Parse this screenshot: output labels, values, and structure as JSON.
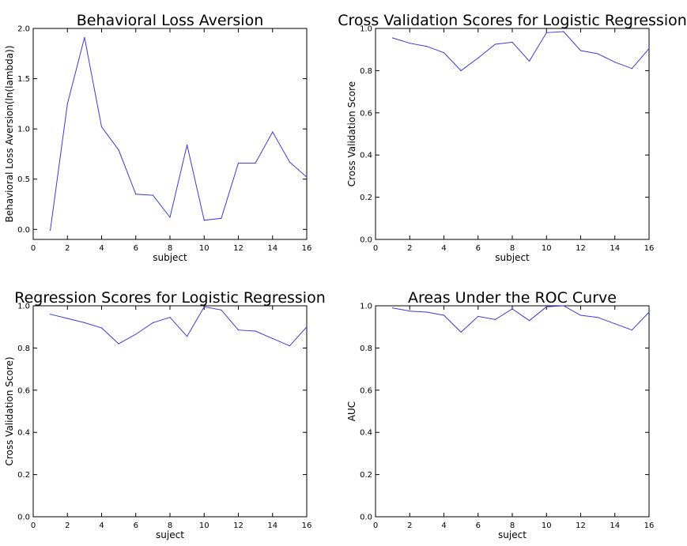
{
  "colors": {
    "line": "#3b3bd6",
    "axes": "#000000",
    "background": "#ffffff"
  },
  "chart_data": [
    {
      "type": "line",
      "title": "Behavioral Loss Aversion",
      "xlabel": "subject",
      "ylabel": "Behavioral Loss Aversion(ln(lambda))",
      "xlim": [
        0,
        16
      ],
      "ylim": [
        -0.1,
        2.0
      ],
      "xticks": [
        "0",
        "2",
        "4",
        "6",
        "8",
        "10",
        "12",
        "14",
        "16"
      ],
      "yticks": [
        "0.0",
        "0.5",
        "1.0",
        "1.5",
        "2.0"
      ],
      "grid": false,
      "series": [
        {
          "x": [
            1,
            2,
            3,
            4,
            5,
            6,
            7,
            8,
            9,
            10,
            11,
            12,
            13,
            14,
            15,
            16
          ],
          "values": [
            -0.01,
            1.25,
            1.91,
            1.02,
            0.79,
            0.35,
            0.34,
            0.12,
            0.84,
            0.09,
            0.11,
            0.66,
            0.66,
            0.97,
            0.67,
            0.52
          ]
        }
      ]
    },
    {
      "type": "line",
      "title": "Cross Validation Scores for Logistic Regression",
      "xlabel": "subject",
      "ylabel": "Cross Validation Score",
      "xlim": [
        0,
        16
      ],
      "ylim": [
        0.0,
        1.0
      ],
      "xticks": [
        "0",
        "2",
        "4",
        "6",
        "8",
        "10",
        "12",
        "14",
        "16"
      ],
      "yticks": [
        "0.0",
        "0.2",
        "0.4",
        "0.6",
        "0.8",
        "1.0"
      ],
      "grid": false,
      "series": [
        {
          "x": [
            1,
            2,
            3,
            4,
            5,
            6,
            7,
            8,
            9,
            10,
            11,
            12,
            13,
            14,
            15,
            16
          ],
          "values": [
            0.955,
            0.93,
            0.915,
            0.885,
            0.8,
            0.86,
            0.925,
            0.935,
            0.845,
            0.98,
            0.985,
            0.895,
            0.88,
            0.84,
            0.81,
            0.905
          ]
        }
      ]
    },
    {
      "type": "line",
      "title": "Regression Scores for Logistic Regression",
      "xlabel": "suject",
      "ylabel": "Cross Validation Score)",
      "xlim": [
        0,
        16
      ],
      "ylim": [
        0.0,
        1.0
      ],
      "xticks": [
        "0",
        "2",
        "4",
        "6",
        "8",
        "10",
        "12",
        "14",
        "16"
      ],
      "yticks": [
        "0.0",
        "0.2",
        "0.4",
        "0.6",
        "0.8",
        "1.0"
      ],
      "grid": false,
      "series": [
        {
          "x": [
            1,
            2,
            3,
            4,
            5,
            6,
            7,
            8,
            9,
            10,
            11,
            12,
            13,
            14,
            15,
            16
          ],
          "values": [
            0.96,
            0.94,
            0.92,
            0.895,
            0.82,
            0.865,
            0.92,
            0.945,
            0.855,
            0.995,
            0.98,
            0.885,
            0.88,
            0.845,
            0.81,
            0.9
          ]
        }
      ]
    },
    {
      "type": "line",
      "title": "Areas Under the ROC Curve",
      "xlabel": "suject",
      "ylabel": "AUC",
      "xlim": [
        0,
        16
      ],
      "ylim": [
        0.0,
        1.0
      ],
      "xticks": [
        "0",
        "2",
        "4",
        "6",
        "8",
        "10",
        "12",
        "14",
        "16"
      ],
      "yticks": [
        "0.0",
        "0.2",
        "0.4",
        "0.6",
        "0.8",
        "1.0"
      ],
      "grid": false,
      "series": [
        {
          "x": [
            1,
            2,
            3,
            4,
            5,
            6,
            7,
            8,
            9,
            10,
            11,
            12,
            13,
            14,
            15,
            16
          ],
          "values": [
            0.99,
            0.975,
            0.97,
            0.955,
            0.875,
            0.95,
            0.935,
            0.985,
            0.93,
            0.995,
            1.0,
            0.955,
            0.945,
            0.915,
            0.885,
            0.97
          ]
        }
      ]
    }
  ]
}
